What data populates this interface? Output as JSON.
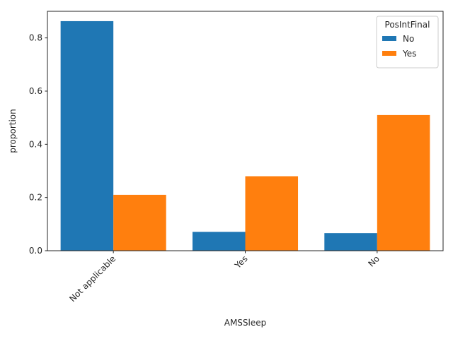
{
  "chart_data": {
    "type": "bar",
    "title": "",
    "xlabel": "AMSSleep",
    "ylabel": "proportion",
    "categories": [
      "Not applicable",
      "Yes",
      "No"
    ],
    "series": [
      {
        "name": "No",
        "color": "#1f77b4",
        "values": [
          0.863,
          0.071,
          0.066
        ]
      },
      {
        "name": "Yes",
        "color": "#ff7f0e",
        "values": [
          0.21,
          0.28,
          0.51
        ]
      }
    ],
    "ylim": [
      0,
      0.9
    ],
    "yticks": [
      0.0,
      0.2,
      0.4,
      0.6,
      0.8
    ],
    "yticks_labels": [
      "0.0",
      "0.2",
      "0.4",
      "0.6",
      "0.8"
    ],
    "grid": false,
    "legend": {
      "title": "PosIntFinal",
      "placement": "top-right"
    }
  }
}
